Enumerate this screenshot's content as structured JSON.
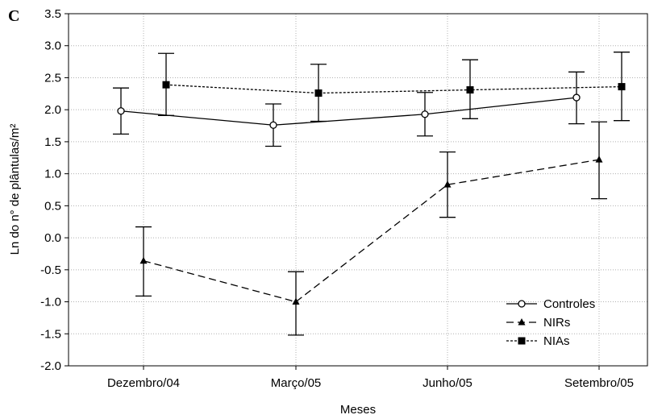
{
  "chart_data": {
    "type": "line",
    "panel_label": "C",
    "title": "",
    "xlabel": "Meses",
    "ylabel": "Ln do n° de plântulas/m²",
    "categories": [
      "Dezembro/04",
      "Março/05",
      "Junho/05",
      "Setembro/05"
    ],
    "ylim": [
      -2.0,
      3.5
    ],
    "yticks": [
      "-2.0",
      "-1.5",
      "-1.0",
      "-0.5",
      "0.0",
      "0.5",
      "1.0",
      "1.5",
      "2.0",
      "2.5",
      "3.0",
      "3.5"
    ],
    "grid": true,
    "legend_position": "bottom-right",
    "series": [
      {
        "name": "Controles",
        "style": "solid",
        "marker": "open-circle",
        "color": "#000000",
        "values": [
          1.98,
          1.76,
          1.93,
          2.19
        ],
        "err_low": [
          1.62,
          1.43,
          1.59,
          1.78
        ],
        "err_high": [
          2.34,
          2.09,
          2.27,
          2.59
        ]
      },
      {
        "name": "NIRs",
        "style": "dashed",
        "marker": "filled-triangle",
        "color": "#000000",
        "values": [
          -0.36,
          -1.0,
          0.83,
          1.22
        ],
        "err_low": [
          -0.91,
          -1.52,
          0.32,
          0.61
        ],
        "err_high": [
          0.17,
          -0.53,
          1.34,
          1.81
        ]
      },
      {
        "name": "NIAs",
        "style": "dotted",
        "marker": "filled-square",
        "color": "#000000",
        "values": [
          2.39,
          2.26,
          2.31,
          2.36
        ],
        "err_low": [
          1.91,
          1.82,
          1.86,
          1.83
        ],
        "err_high": [
          2.88,
          2.71,
          2.78,
          2.9
        ]
      }
    ]
  }
}
